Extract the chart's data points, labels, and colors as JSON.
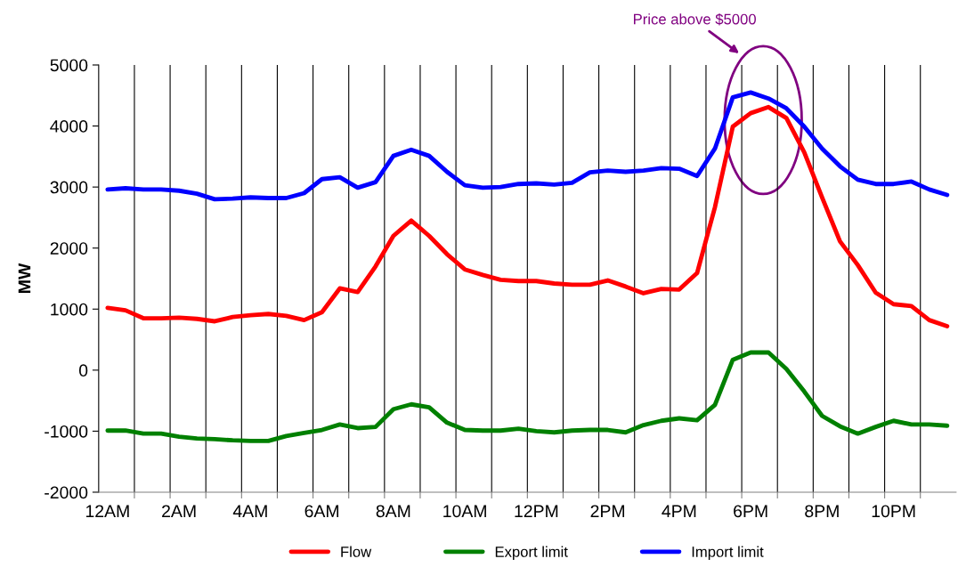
{
  "chart_data": {
    "type": "line",
    "ylabel": "MW",
    "categories": [
      "12AM",
      null,
      null,
      null,
      "2AM",
      null,
      null,
      null,
      "4AM",
      null,
      null,
      null,
      "6AM",
      null,
      null,
      null,
      "8AM",
      null,
      null,
      null,
      "10AM",
      null,
      null,
      null,
      "12PM",
      null,
      null,
      null,
      "2PM",
      null,
      null,
      null,
      "4PM",
      null,
      null,
      null,
      "6PM",
      null,
      null,
      null,
      "8PM",
      null,
      null,
      null,
      "10PM",
      null,
      null,
      null
    ],
    "series": [
      {
        "name": "Flow",
        "color": "#ff0000",
        "values": [
          1020,
          980,
          850,
          850,
          860,
          840,
          800,
          870,
          900,
          920,
          890,
          820,
          950,
          1340,
          1280,
          1700,
          2200,
          2450,
          2200,
          1900,
          1650,
          1560,
          1480,
          1460,
          1460,
          1420,
          1400,
          1400,
          1470,
          1370,
          1260,
          1330,
          1320,
          1590,
          2670,
          3990,
          4210,
          4310,
          4130,
          3570,
          2830,
          2110,
          1720,
          1270,
          1080,
          1050,
          820,
          720
        ]
      },
      {
        "name": "Export limit",
        "color": "#008000",
        "values": [
          -990,
          -990,
          -1040,
          -1040,
          -1090,
          -1120,
          -1130,
          -1150,
          -1160,
          -1160,
          -1080,
          -1030,
          -980,
          -890,
          -950,
          -930,
          -640,
          -560,
          -610,
          -860,
          -980,
          -990,
          -990,
          -960,
          -1000,
          -1020,
          -990,
          -980,
          -980,
          -1020,
          -900,
          -830,
          -790,
          -820,
          -570,
          170,
          290,
          290,
          20,
          -350,
          -750,
          -920,
          -1040,
          -930,
          -830,
          -890,
          -890,
          -910
        ]
      },
      {
        "name": "Import limit",
        "color": "#0000ff",
        "values": [
          2960,
          2980,
          2960,
          2960,
          2940,
          2890,
          2800,
          2810,
          2830,
          2820,
          2820,
          2900,
          3130,
          3160,
          2990,
          3080,
          3510,
          3610,
          3510,
          3250,
          3030,
          2990,
          3000,
          3050,
          3060,
          3040,
          3070,
          3240,
          3270,
          3250,
          3270,
          3310,
          3300,
          3180,
          3630,
          4470,
          4550,
          4450,
          4290,
          3990,
          3630,
          3340,
          3120,
          3050,
          3050,
          3090,
          2960,
          2870
        ]
      }
    ],
    "ylim": [
      -2000,
      5000
    ],
    "yticks": [
      -2000,
      -1000,
      0,
      1000,
      2000,
      3000,
      4000,
      5000
    ],
    "grid": "x",
    "legend": "bottom",
    "marker": "none",
    "line_style": "solid",
    "annotations": [
      "Price above $5000"
    ]
  }
}
